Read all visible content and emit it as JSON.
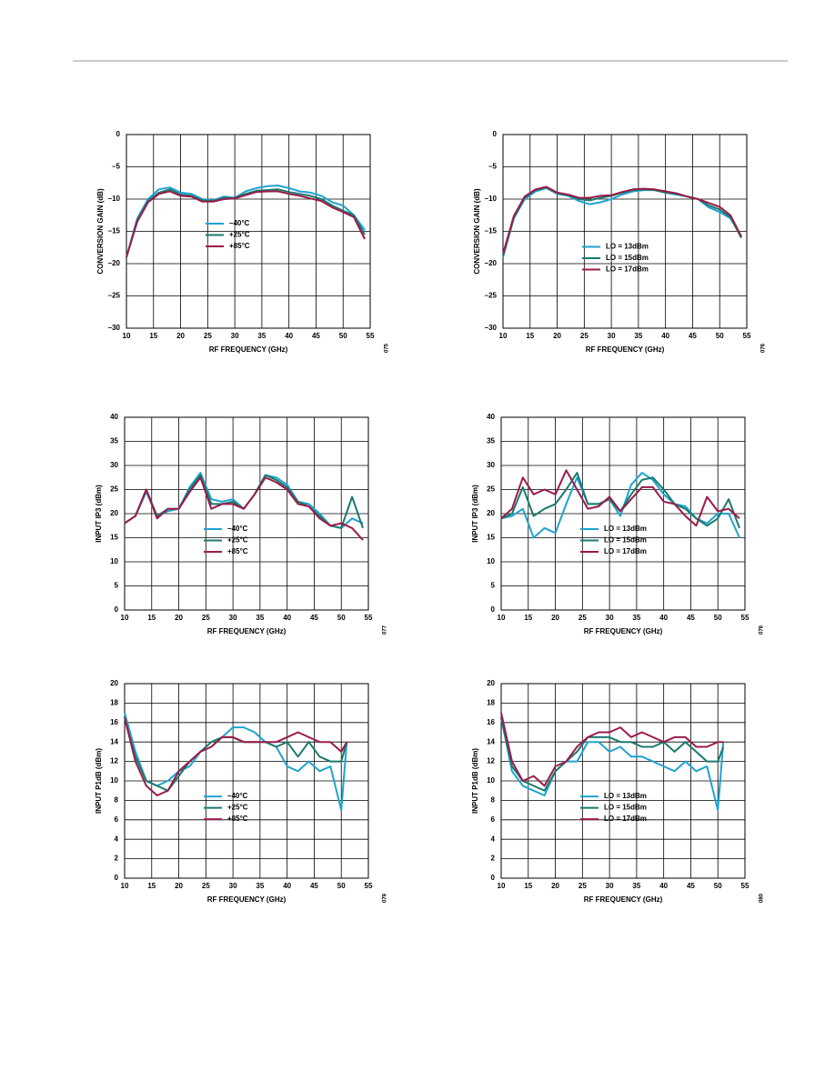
{
  "chart_data": [
    {
      "type": "line",
      "x_label": "RF FREQUENCY (GHz)",
      "y_label": "CONVERSION GAIN (dB)",
      "note": "075",
      "x": [
        10,
        12,
        14,
        16,
        18,
        20,
        22,
        24,
        26,
        28,
        30,
        32,
        34,
        36,
        38,
        40,
        42,
        44,
        46,
        48,
        50,
        52,
        54
      ],
      "xlim": [
        10,
        55
      ],
      "xticks": [
        10,
        15,
        20,
        25,
        30,
        35,
        40,
        45,
        50,
        55
      ],
      "ylim": [
        -30,
        0
      ],
      "yticks": [
        {
          "value": -30,
          "label": "–30"
        },
        {
          "value": -25,
          "label": "–25"
        },
        {
          "value": -20,
          "label": "–20"
        },
        {
          "value": -15,
          "label": "–15"
        },
        {
          "value": -10,
          "label": "–10"
        },
        {
          "value": -5,
          "label": "–5"
        },
        0
      ],
      "grid": true,
      "legend": "center",
      "series": [
        {
          "name": "–40°C",
          "color": "#1fa3d1",
          "values": [
            -19,
            -13,
            -10,
            -8.5,
            -8.2,
            -9,
            -9.2,
            -10,
            -10.2,
            -9.6,
            -9.8,
            -8.8,
            -8.3,
            -8,
            -7.9,
            -8.3,
            -8.8,
            -9,
            -9.5,
            -10.5,
            -11,
            -12.5,
            -14.8
          ]
        },
        {
          "name": "+25°C",
          "color": "#1a7a6e",
          "values": [
            -19,
            -13.3,
            -10.3,
            -9,
            -8.5,
            -9.3,
            -9.5,
            -10.2,
            -10.3,
            -9.8,
            -9.8,
            -9.2,
            -8.7,
            -8.6,
            -8.5,
            -8.9,
            -9.2,
            -9.5,
            -10,
            -11,
            -11.8,
            -12.5,
            -15.5
          ]
        },
        {
          "name": "+85°C",
          "color": "#9b1b4a",
          "values": [
            -19,
            -13.5,
            -10.5,
            -9.2,
            -8.8,
            -9.5,
            -9.6,
            -10.4,
            -10.4,
            -10,
            -9.9,
            -9.4,
            -8.9,
            -8.8,
            -8.8,
            -9.2,
            -9.5,
            -9.9,
            -10.3,
            -11.3,
            -12,
            -12.8,
            -16.2
          ]
        }
      ]
    },
    {
      "type": "line",
      "x_label": "RF FREQUENCY (GHz)",
      "y_label": "CONVERSION GAIN (dB)",
      "note": "076",
      "x": [
        10,
        12,
        14,
        16,
        18,
        20,
        22,
        24,
        26,
        28,
        30,
        32,
        34,
        36,
        38,
        40,
        42,
        44,
        46,
        48,
        50,
        52,
        54
      ],
      "xlim": [
        10,
        55
      ],
      "xticks": [
        10,
        15,
        20,
        25,
        30,
        35,
        40,
        45,
        50,
        55
      ],
      "ylim": [
        -30,
        0
      ],
      "yticks": [
        {
          "value": -30,
          "label": "–30"
        },
        {
          "value": -25,
          "label": "–25"
        },
        {
          "value": -20,
          "label": "–20"
        },
        {
          "value": -15,
          "label": "–15"
        },
        {
          "value": -10,
          "label": "–10"
        },
        {
          "value": -5,
          "label": "–5"
        },
        0
      ],
      "grid": true,
      "legend": "lower center",
      "series": [
        {
          "name": "LO = 13dBm",
          "color": "#1fa3d1",
          "values": [
            -19,
            -13,
            -10,
            -8.8,
            -8.3,
            -9.2,
            -9.5,
            -10.3,
            -10.8,
            -10.5,
            -10,
            -9.3,
            -8.8,
            -8.6,
            -8.6,
            -9,
            -9.3,
            -9.6,
            -10,
            -11.3,
            -12,
            -13,
            -15.8
          ]
        },
        {
          "name": "LO = 15dBm",
          "color": "#1a7a6e",
          "values": [
            -18.8,
            -12.8,
            -9.8,
            -8.6,
            -8.2,
            -9.1,
            -9.4,
            -10,
            -10.2,
            -9.8,
            -9.5,
            -9,
            -8.6,
            -8.5,
            -8.6,
            -9,
            -9.2,
            -9.6,
            -10,
            -11,
            -11.6,
            -12.8,
            -16
          ]
        },
        {
          "name": "LO = 17dBm",
          "color": "#9b1b4a",
          "values": [
            -18.5,
            -12.6,
            -9.6,
            -8.5,
            -8.1,
            -9,
            -9.3,
            -9.8,
            -9.8,
            -9.5,
            -9.4,
            -8.9,
            -8.5,
            -8.4,
            -8.5,
            -8.8,
            -9.1,
            -9.6,
            -10,
            -10.6,
            -11.2,
            -12.5,
            -15.8
          ]
        }
      ]
    },
    {
      "type": "line",
      "x_label": "RF FREQUENCY (GHz)",
      "y_label": "INPUT IP3 (dBm)",
      "note": "077",
      "x": [
        10,
        12,
        14,
        16,
        18,
        20,
        22,
        24,
        26,
        28,
        30,
        32,
        34,
        36,
        38,
        40,
        42,
        44,
        46,
        48,
        50,
        52,
        54
      ],
      "xlim": [
        10,
        55
      ],
      "xticks": [
        10,
        15,
        20,
        25,
        30,
        35,
        40,
        45,
        50,
        55
      ],
      "ylim": [
        0,
        40
      ],
      "yticks": [
        0,
        5,
        10,
        15,
        20,
        25,
        30,
        35,
        40
      ],
      "grid": true,
      "legend": "lower center",
      "series": [
        {
          "name": "–40°C",
          "color": "#1fa3d1",
          "values": [
            18,
            19.5,
            24.5,
            19.5,
            20.5,
            21,
            25.5,
            28.5,
            23,
            22.5,
            23,
            21,
            24,
            28,
            27.5,
            26,
            22.5,
            22,
            20,
            17.5,
            17,
            19,
            18
          ]
        },
        {
          "name": "+25°C",
          "color": "#1a7a6e",
          "values": [
            18,
            19.5,
            25,
            19.5,
            21,
            21,
            25,
            28,
            22,
            22,
            22.5,
            21,
            24,
            28,
            27,
            25.5,
            22.5,
            21.5,
            19.5,
            17.5,
            17,
            23.5,
            17
          ]
        },
        {
          "name": "+85°C",
          "color": "#9b1b4a",
          "values": [
            18,
            19.5,
            25,
            19,
            21,
            21,
            24.5,
            27.5,
            21,
            22,
            22,
            21,
            24,
            27.5,
            26.5,
            25,
            22,
            21.5,
            19,
            17.5,
            18,
            17,
            14.5
          ]
        }
      ]
    },
    {
      "type": "line",
      "x_label": "RF FREQUENCY (GHz)",
      "y_label": "INPUT IP3 (dBm)",
      "note": "078",
      "x": [
        10,
        12,
        14,
        16,
        18,
        20,
        22,
        24,
        26,
        28,
        30,
        32,
        34,
        36,
        38,
        40,
        42,
        44,
        46,
        48,
        50,
        52,
        54
      ],
      "xlim": [
        10,
        55
      ],
      "xticks": [
        10,
        15,
        20,
        25,
        30,
        35,
        40,
        45,
        50,
        55
      ],
      "ylim": [
        0,
        40
      ],
      "yticks": [
        0,
        5,
        10,
        15,
        20,
        25,
        30,
        35,
        40
      ],
      "grid": true,
      "legend": "lower center",
      "series": [
        {
          "name": "LO = 13dBm",
          "color": "#1fa3d1",
          "values": [
            19,
            19.5,
            21,
            15,
            17,
            16,
            22,
            27.5,
            22,
            22,
            23,
            19.5,
            26,
            28.5,
            27,
            24,
            22,
            21.5,
            19,
            18,
            20,
            20,
            15
          ]
        },
        {
          "name": "LO = 15dBm",
          "color": "#1a7a6e",
          "values": [
            19,
            20,
            25.5,
            19.5,
            21,
            22,
            25,
            28.5,
            22,
            22,
            23,
            20.5,
            24,
            27,
            27.5,
            25,
            22,
            21,
            19,
            17.5,
            19,
            23,
            17
          ]
        },
        {
          "name": "LO = 17dBm",
          "color": "#9b1b4a",
          "values": [
            19,
            21,
            27.5,
            24,
            25,
            24,
            29,
            25,
            21,
            21.5,
            23.5,
            20.5,
            23,
            25.5,
            25.5,
            22.5,
            22,
            19.5,
            17.5,
            23.5,
            20.5,
            21,
            19
          ]
        }
      ]
    },
    {
      "type": "line",
      "x_label": "RF FREQUENCY (GHz)",
      "y_label": "INPUT P1dB (dBm)",
      "note": "079",
      "x": [
        10,
        12,
        14,
        16,
        18,
        20,
        22,
        24,
        26,
        28,
        30,
        32,
        34,
        36,
        38,
        40,
        42,
        44,
        46,
        48,
        50,
        51
      ],
      "xlim": [
        10,
        55
      ],
      "xticks": [
        10,
        15,
        20,
        25,
        30,
        35,
        40,
        45,
        50,
        55
      ],
      "ylim": [
        0,
        20
      ],
      "yticks": [
        0,
        2,
        4,
        6,
        8,
        10,
        12,
        14,
        16,
        18,
        20
      ],
      "grid": true,
      "legend": "lower center",
      "series": [
        {
          "name": "–40°C",
          "color": "#1fa3d1",
          "values": [
            17,
            13,
            10,
            9.5,
            10,
            11,
            11.5,
            13,
            13.5,
            14.5,
            15.5,
            15.5,
            15,
            14,
            13.5,
            11.5,
            11,
            12,
            11,
            11.5,
            7,
            14
          ]
        },
        {
          "name": "+25°C",
          "color": "#1a7a6e",
          "values": [
            16.5,
            12.5,
            10,
            9.5,
            9,
            10.5,
            12,
            13,
            14,
            14.5,
            14.5,
            14,
            14,
            14,
            13.5,
            14,
            12.5,
            14,
            12.5,
            12,
            12,
            14
          ]
        },
        {
          "name": "+85°C",
          "color": "#9b1b4a",
          "values": [
            16.5,
            12,
            9.5,
            8.5,
            9,
            11,
            12,
            13,
            13.5,
            14.5,
            14.5,
            14,
            14,
            14,
            14,
            14.5,
            15,
            14.5,
            14,
            14,
            13,
            14
          ]
        }
      ]
    },
    {
      "type": "line",
      "x_label": "RF FREQUENCY (GHz)",
      "y_label": "INPUT P1dB (dBm)",
      "note": "080",
      "x": [
        10,
        12,
        14,
        16,
        18,
        20,
        22,
        24,
        26,
        28,
        30,
        32,
        34,
        36,
        38,
        40,
        42,
        44,
        46,
        48,
        50,
        51
      ],
      "xlim": [
        10,
        55
      ],
      "xticks": [
        10,
        15,
        20,
        25,
        30,
        35,
        40,
        45,
        50,
        55
      ],
      "ylim": [
        0,
        20
      ],
      "yticks": [
        0,
        2,
        4,
        6,
        8,
        10,
        12,
        14,
        16,
        18,
        20
      ],
      "grid": true,
      "legend": "lower center",
      "series": [
        {
          "name": "LO = 13dBm",
          "color": "#1fa3d1",
          "values": [
            16.5,
            11,
            9.5,
            9,
            8.5,
            11,
            12,
            12,
            14,
            14,
            13,
            13.5,
            12.5,
            12.5,
            12,
            11.5,
            11,
            12,
            11,
            11.5,
            7,
            14
          ]
        },
        {
          "name": "LO = 15dBm",
          "color": "#1a7a6e",
          "values": [
            16.5,
            11.5,
            10,
            9.5,
            9,
            11,
            12,
            13,
            14.5,
            14.5,
            14.5,
            14,
            14,
            13.5,
            13.5,
            14,
            13,
            14,
            13,
            12,
            12,
            13.5
          ]
        },
        {
          "name": "LO = 17dBm",
          "color": "#9b1b4a",
          "values": [
            17,
            12,
            10,
            10.5,
            9.5,
            11.5,
            12,
            13.5,
            14.5,
            15,
            15,
            15.5,
            14.5,
            15,
            14.5,
            14,
            14.5,
            14.5,
            13.5,
            13.5,
            14,
            14
          ]
        }
      ]
    }
  ]
}
